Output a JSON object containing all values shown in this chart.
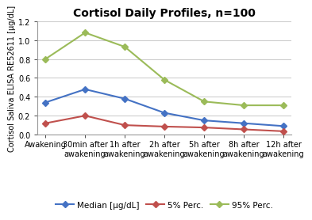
{
  "title": "Cortisol Daily Profiles, n=100",
  "ylabel": "Cortisol Saliva ELISA RE52611 [µg/dL]",
  "x_labels": [
    "Awakening",
    "30min after\nawakening",
    "1h after\nawakening",
    "2h after\nawakening",
    "5h after\nawakening",
    "8h after\nawakening",
    "12h after\nawakening"
  ],
  "x_values": [
    0,
    1,
    2,
    3,
    4,
    5,
    6
  ],
  "median": [
    0.34,
    0.48,
    0.38,
    0.23,
    0.15,
    0.12,
    0.09
  ],
  "perc5": [
    0.12,
    0.2,
    0.1,
    0.085,
    0.075,
    0.055,
    0.035
  ],
  "perc95": [
    0.8,
    1.08,
    0.93,
    0.58,
    0.35,
    0.31,
    0.31
  ],
  "median_color": "#4472C4",
  "perc5_color": "#C0504D",
  "perc95_color": "#9BBB59",
  "ylim": [
    0.0,
    1.2
  ],
  "yticks": [
    0.0,
    0.2,
    0.4,
    0.6,
    0.8,
    1.0,
    1.2
  ],
  "background_color": "#FFFFFF",
  "grid_color": "#C8C8C8",
  "title_fontsize": 10,
  "label_fontsize": 7,
  "tick_fontsize": 7,
  "legend_fontsize": 7.5,
  "linewidth": 1.5,
  "markersize": 4
}
